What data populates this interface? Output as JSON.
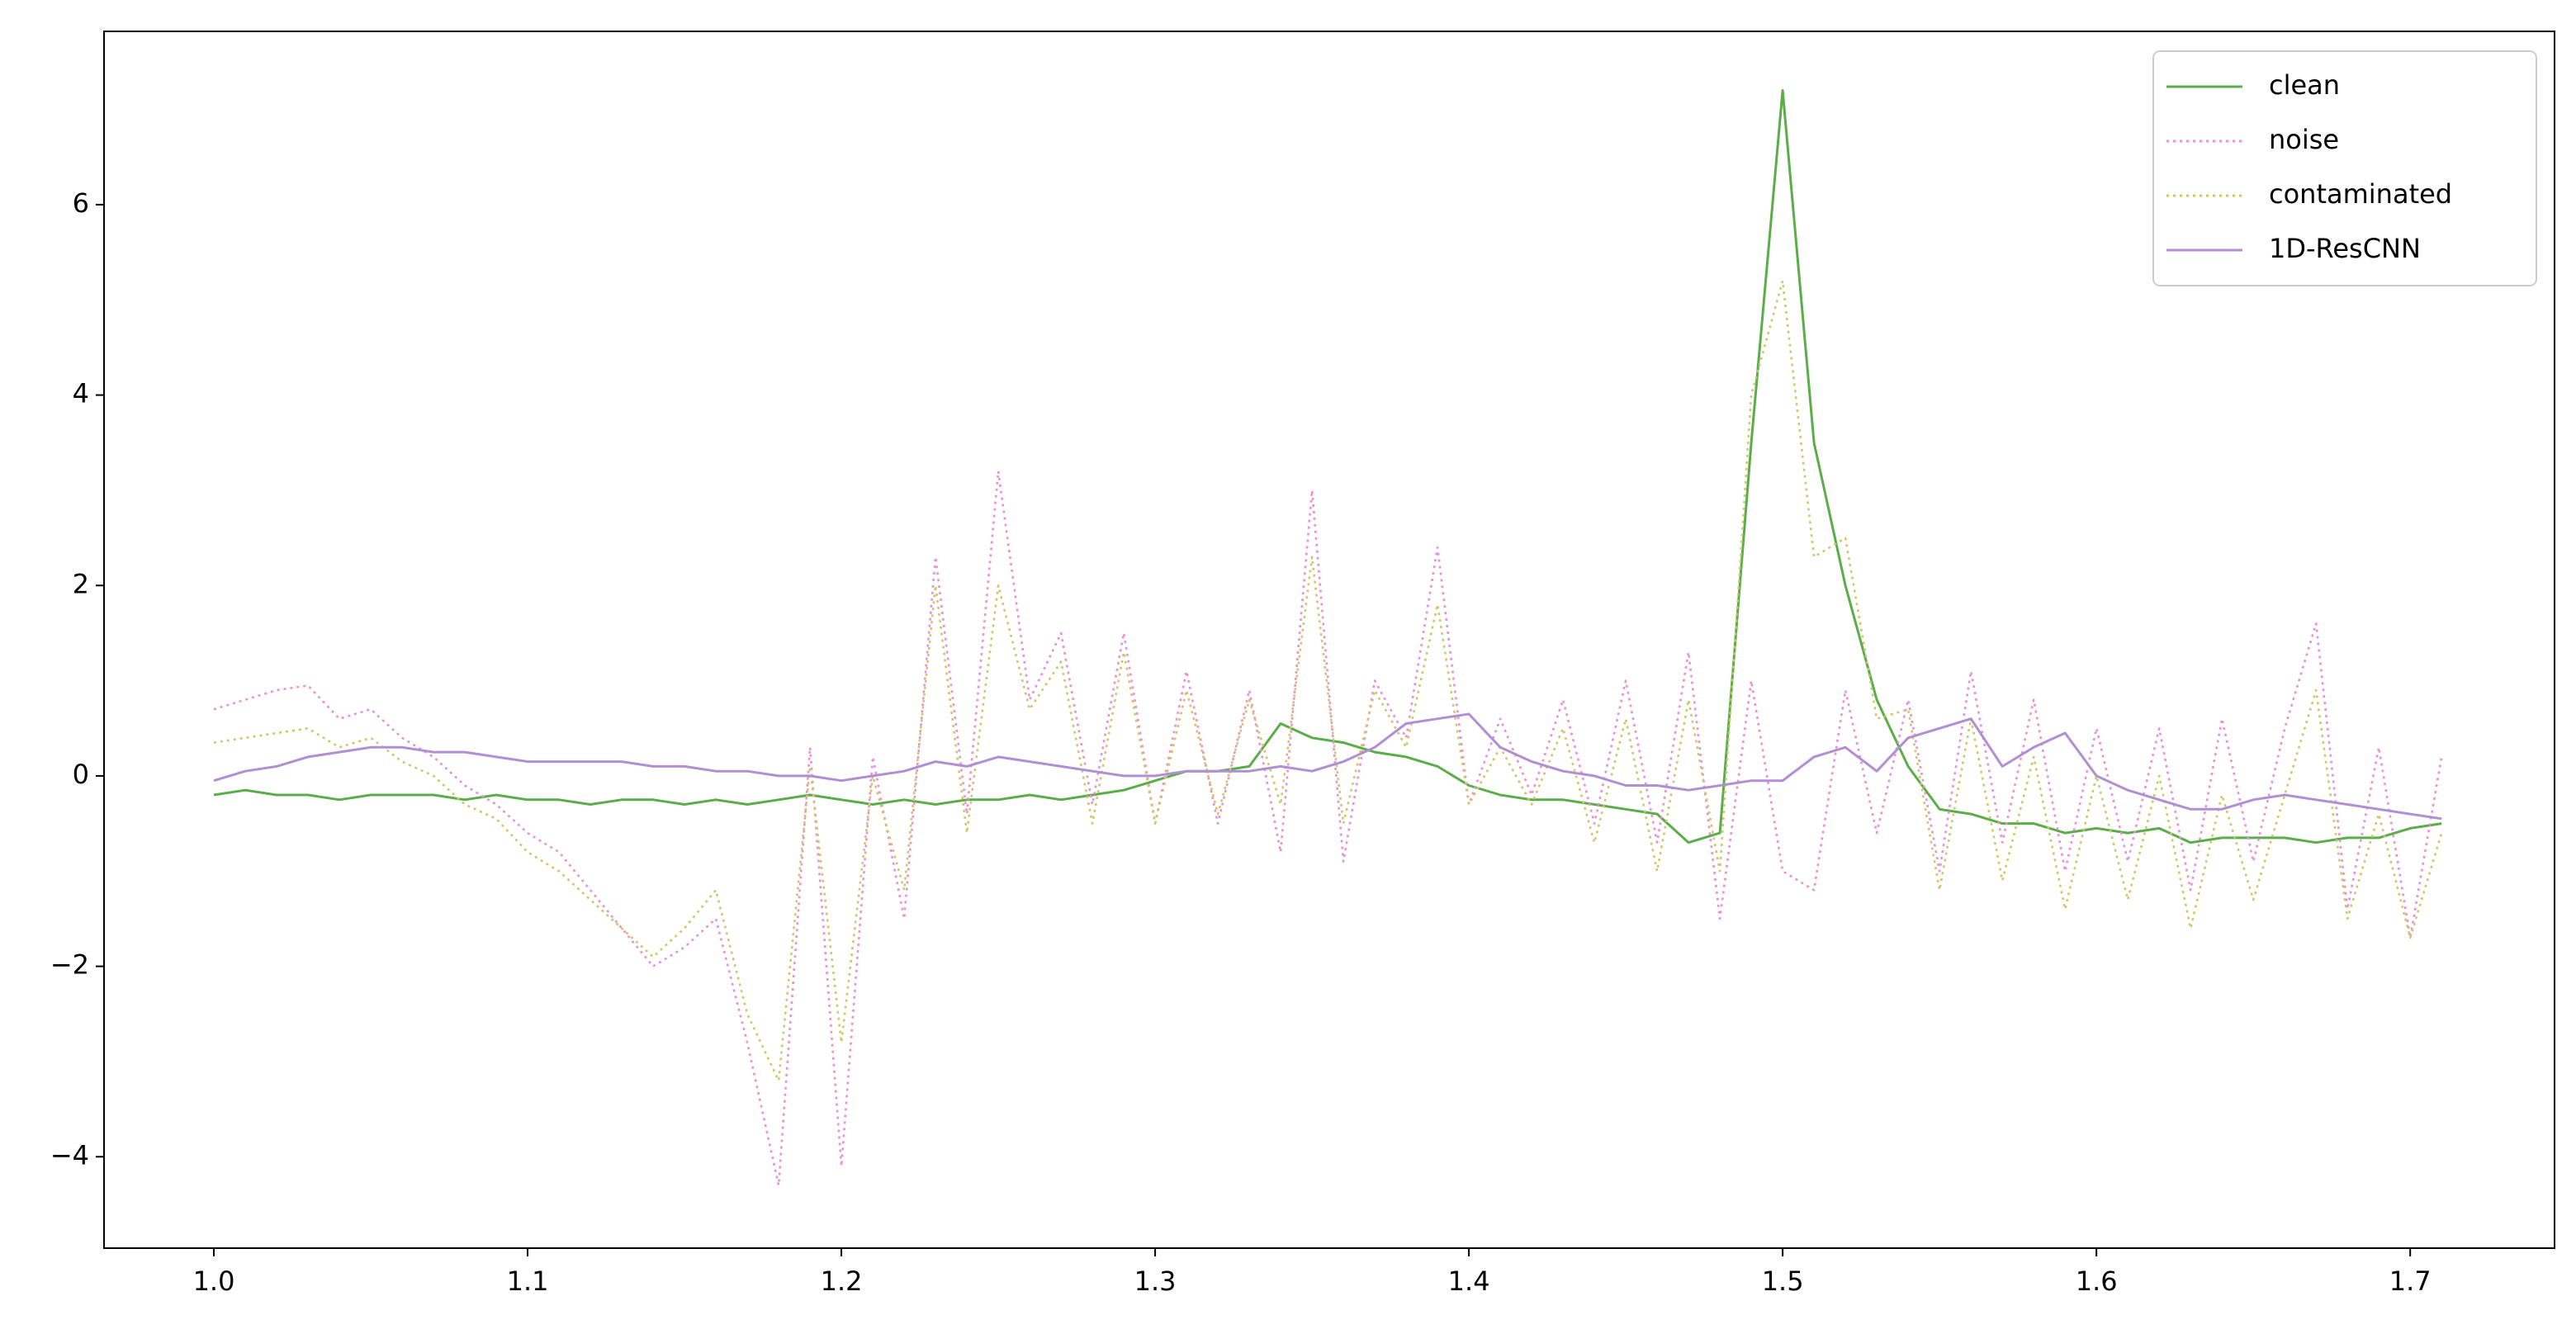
{
  "chart_data": {
    "type": "line",
    "xlim": [
      0.965,
      1.746
    ],
    "ylim": [
      -4.96,
      7.82
    ],
    "xticks": [
      {
        "value": 1,
        "label": "1.0"
      },
      1.1,
      1.2,
      1.3,
      1.4,
      1.5,
      1.6,
      1.7
    ],
    "yticks": [
      {
        "value": -4,
        "label": "−4"
      },
      {
        "value": -2,
        "label": "−2"
      },
      0,
      2,
      4,
      6
    ],
    "legend": "upper right",
    "x": [
      1.0,
      1.01,
      1.02,
      1.03,
      1.04,
      1.05,
      1.06,
      1.07,
      1.08,
      1.09,
      1.1,
      1.11,
      1.12,
      1.13,
      1.14,
      1.15,
      1.16,
      1.17,
      1.18,
      1.19,
      1.2,
      1.21,
      1.22,
      1.23,
      1.24,
      1.25,
      1.26,
      1.27,
      1.28,
      1.29,
      1.3,
      1.31,
      1.32,
      1.33,
      1.34,
      1.35,
      1.36,
      1.37,
      1.38,
      1.39,
      1.4,
      1.41,
      1.42,
      1.43,
      1.44,
      1.45,
      1.46,
      1.47,
      1.48,
      1.49,
      1.5,
      1.51,
      1.52,
      1.53,
      1.54,
      1.55,
      1.56,
      1.57,
      1.58,
      1.59,
      1.6,
      1.61,
      1.62,
      1.63,
      1.64,
      1.65,
      1.66,
      1.67,
      1.68,
      1.69,
      1.7,
      1.71
    ],
    "series": [
      {
        "name": "clean",
        "color": "#5aad48",
        "linestyle": "solid",
        "values": [
          -0.2,
          -0.15,
          -0.2,
          -0.2,
          -0.25,
          -0.2,
          -0.2,
          -0.2,
          -0.25,
          -0.2,
          -0.25,
          -0.25,
          -0.3,
          -0.25,
          -0.25,
          -0.3,
          -0.25,
          -0.3,
          -0.25,
          -0.2,
          -0.25,
          -0.3,
          -0.25,
          -0.3,
          -0.25,
          -0.25,
          -0.2,
          -0.25,
          -0.2,
          -0.15,
          -0.05,
          0.05,
          0.05,
          0.1,
          0.55,
          0.4,
          0.35,
          0.25,
          0.2,
          0.1,
          -0.1,
          -0.2,
          -0.25,
          -0.25,
          -0.3,
          -0.35,
          -0.4,
          -0.7,
          -0.6,
          3.5,
          7.2,
          3.5,
          2.0,
          0.8,
          0.1,
          -0.35,
          -0.4,
          -0.5,
          -0.5,
          -0.6,
          -0.55,
          -0.6,
          -0.55,
          -0.7,
          -0.65,
          -0.65,
          -0.65,
          -0.7,
          -0.65,
          -0.65,
          -0.55,
          -0.5
        ]
      },
      {
        "name": "noise",
        "color": "#e890d8",
        "linestyle": "dotted",
        "values": [
          0.7,
          0.8,
          0.9,
          0.95,
          0.6,
          0.7,
          0.4,
          0.2,
          -0.1,
          -0.3,
          -0.6,
          -0.8,
          -1.2,
          -1.6,
          -2.0,
          -1.8,
          -1.5,
          -2.8,
          -4.3,
          0.3,
          -4.1,
          0.2,
          -1.5,
          2.3,
          -0.4,
          3.2,
          0.8,
          1.5,
          -0.3,
          1.5,
          -0.5,
          1.1,
          -0.5,
          0.9,
          -0.8,
          3.0,
          -0.9,
          1.0,
          0.4,
          2.4,
          -0.3,
          0.6,
          -0.2,
          0.8,
          -0.5,
          1.0,
          -0.7,
          1.3,
          -1.5,
          1.0,
          -1.0,
          -1.2,
          0.9,
          -0.6,
          0.8,
          -1.0,
          1.1,
          -0.7,
          0.8,
          -1.0,
          0.5,
          -0.9,
          0.5,
          -1.2,
          0.6,
          -0.9,
          0.5,
          1.6,
          -1.4,
          0.3,
          -1.7,
          0.2
        ]
      },
      {
        "name": "contaminated",
        "color": "#cfc76a",
        "linestyle": "dotted",
        "values": [
          0.35,
          0.4,
          0.45,
          0.5,
          0.3,
          0.4,
          0.15,
          0.0,
          -0.3,
          -0.45,
          -0.8,
          -1.0,
          -1.3,
          -1.6,
          -1.9,
          -1.6,
          -1.2,
          -2.5,
          -3.2,
          0.1,
          -2.8,
          0.0,
          -1.2,
          2.0,
          -0.6,
          2.0,
          0.7,
          1.2,
          -0.5,
          1.3,
          -0.5,
          0.9,
          -0.4,
          0.8,
          -0.3,
          2.3,
          -0.5,
          0.9,
          0.3,
          1.8,
          -0.3,
          0.3,
          -0.3,
          0.5,
          -0.7,
          0.6,
          -1.0,
          0.8,
          -1.0,
          4.0,
          5.2,
          2.3,
          2.5,
          0.6,
          0.7,
          -1.2,
          0.6,
          -1.1,
          0.2,
          -1.4,
          0.0,
          -1.3,
          0.0,
          -1.6,
          -0.2,
          -1.3,
          -0.2,
          0.9,
          -1.5,
          -0.4,
          -1.7,
          -0.6
        ]
      },
      {
        "name": "1D-ResCNN",
        "color": "#b08fd2",
        "linestyle": "solid",
        "values": [
          -0.05,
          0.05,
          0.1,
          0.2,
          0.25,
          0.3,
          0.3,
          0.25,
          0.25,
          0.2,
          0.15,
          0.15,
          0.15,
          0.15,
          0.1,
          0.1,
          0.05,
          0.05,
          0.0,
          0.0,
          -0.05,
          0.0,
          0.05,
          0.15,
          0.1,
          0.2,
          0.15,
          0.1,
          0.05,
          0.0,
          0.0,
          0.05,
          0.05,
          0.05,
          0.1,
          0.05,
          0.15,
          0.3,
          0.55,
          0.6,
          0.65,
          0.3,
          0.15,
          0.05,
          0.0,
          -0.1,
          -0.1,
          -0.15,
          -0.1,
          -0.05,
          -0.05,
          0.2,
          0.3,
          0.05,
          0.4,
          0.5,
          0.6,
          0.1,
          0.3,
          0.45,
          0.0,
          -0.15,
          -0.25,
          -0.35,
          -0.35,
          -0.25,
          -0.2,
          -0.25,
          -0.3,
          -0.35,
          -0.4,
          -0.45
        ]
      }
    ]
  }
}
